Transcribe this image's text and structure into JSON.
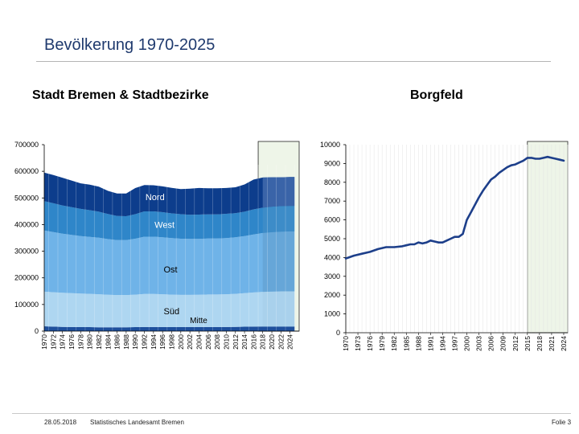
{
  "page": {
    "title": "Bevölkerung 1970-2025",
    "footer_date": "28.05.2018",
    "footer_source": "Statistisches Landesamt Bremen",
    "footer_page": "Folie 3"
  },
  "chart_data": [
    {
      "type": "area",
      "stacked": true,
      "title": "Stadt Bremen & Stadtbezirke",
      "ylim": [
        0,
        700000
      ],
      "yticks": [
        0,
        100000,
        200000,
        300000,
        400000,
        500000,
        600000,
        700000
      ],
      "xlim": [
        1970,
        2026
      ],
      "xtick_labels": [
        "1970",
        "1972",
        "1974",
        "1976",
        "1978",
        "1980",
        "1982",
        "1984",
        "1986",
        "1988",
        "1990",
        "1992",
        "1994",
        "1996",
        "1998",
        "2000",
        "2002",
        "2004",
        "2006",
        "2008",
        "2010",
        "2012",
        "2014",
        "2016",
        "2018",
        "2020",
        "2022",
        "2024"
      ],
      "forecast_highlight": [
        2017,
        2026
      ],
      "x": [
        1970,
        1972,
        1974,
        1976,
        1978,
        1980,
        1982,
        1984,
        1986,
        1988,
        1990,
        1992,
        1994,
        1996,
        1998,
        2000,
        2002,
        2004,
        2006,
        2008,
        2010,
        2012,
        2014,
        2016,
        2018,
        2020,
        2022,
        2024,
        2025
      ],
      "series": [
        {
          "name": "Mitte",
          "color": "#1e4f9c",
          "values": [
            18000,
            17000,
            16000,
            15500,
            15000,
            15000,
            14500,
            14500,
            14500,
            14500,
            15000,
            15500,
            15500,
            15500,
            15000,
            15000,
            15000,
            15500,
            15500,
            15500,
            15500,
            16000,
            16500,
            17000,
            17500,
            17500,
            17500,
            17500,
            17500
          ]
        },
        {
          "name": "Süd",
          "color": "#aed6f1",
          "values": [
            130000,
            129000,
            128000,
            127000,
            126000,
            125000,
            124000,
            122000,
            121000,
            121000,
            122000,
            124000,
            124000,
            123000,
            122000,
            121000,
            121000,
            121000,
            122000,
            122000,
            123000,
            124000,
            126000,
            128000,
            130000,
            131000,
            132000,
            132000,
            132000
          ]
        },
        {
          "name": "Ost",
          "color": "#6fb3e8",
          "values": [
            230000,
            226000,
            222000,
            219000,
            216000,
            214000,
            212000,
            209000,
            206000,
            206000,
            210000,
            215000,
            215000,
            214000,
            212000,
            211000,
            210000,
            210000,
            210000,
            210000,
            211000,
            212000,
            214000,
            218000,
            221000,
            223000,
            224000,
            225000,
            225000
          ]
        },
        {
          "name": "West",
          "color": "#2f86c9",
          "values": [
            110000,
            108000,
            106000,
            104000,
            102000,
            100000,
            98000,
            94000,
            91000,
            90000,
            92000,
            95000,
            95000,
            94000,
            93000,
            92000,
            91000,
            91000,
            91000,
            91000,
            91000,
            91000,
            92000,
            94000,
            95000,
            96000,
            96000,
            96000,
            96000
          ]
        },
        {
          "name": "Nord",
          "color": "#0d3d8c",
          "values": [
            107000,
            106000,
            104000,
            100000,
            96000,
            96000,
            94000,
            87000,
            84000,
            85000,
            98000,
            99000,
            98000,
            97000,
            96000,
            94000,
            98000,
            100000,
            98000,
            98000,
            97000,
            97000,
            102000,
            112000,
            113000,
            110000,
            108000,
            108000,
            108000
          ]
        }
      ],
      "forecast_colors": [
        "#1e4f9c",
        "#a9d1ec",
        "#66a6d8",
        "#3d8cc8",
        "#3a64a8"
      ]
    },
    {
      "type": "line",
      "title": "Borgfeld",
      "ylim": [
        0,
        10000
      ],
      "yticks": [
        0,
        1000,
        2000,
        3000,
        4000,
        5000,
        6000,
        7000,
        8000,
        9000,
        10000
      ],
      "xlim": [
        1970,
        2025
      ],
      "xtick_labels": [
        "1970",
        "1973",
        "1976",
        "1979",
        "1982",
        "1985",
        "1988",
        "1991",
        "1994",
        "1997",
        "2000",
        "2003",
        "2006",
        "2009",
        "2012",
        "2015",
        "2018",
        "2021",
        "2024"
      ],
      "forecast_highlight": [
        2015,
        2025
      ],
      "color": "#1d3f8a",
      "x": [
        1970,
        1972,
        1974,
        1976,
        1978,
        1980,
        1982,
        1984,
        1985,
        1986,
        1987,
        1988,
        1989,
        1990,
        1991,
        1992,
        1993,
        1994,
        1995,
        1996,
        1997,
        1998,
        1999,
        2000,
        2001,
        2002,
        2003,
        2004,
        2005,
        2006,
        2007,
        2008,
        2009,
        2010,
        2011,
        2012,
        2013,
        2014,
        2015,
        2016,
        2017,
        2018,
        2019,
        2020,
        2021,
        2022,
        2023,
        2024
      ],
      "values": [
        3950,
        4100,
        4200,
        4300,
        4450,
        4550,
        4550,
        4600,
        4650,
        4700,
        4700,
        4800,
        4750,
        4800,
        4900,
        4850,
        4800,
        4800,
        4900,
        5000,
        5100,
        5100,
        5250,
        6000,
        6400,
        6800,
        7200,
        7550,
        7850,
        8150,
        8300,
        8500,
        8650,
        8800,
        8900,
        8950,
        9050,
        9150,
        9300,
        9300,
        9250,
        9250,
        9300,
        9350,
        9300,
        9250,
        9200,
        9150
      ]
    }
  ]
}
